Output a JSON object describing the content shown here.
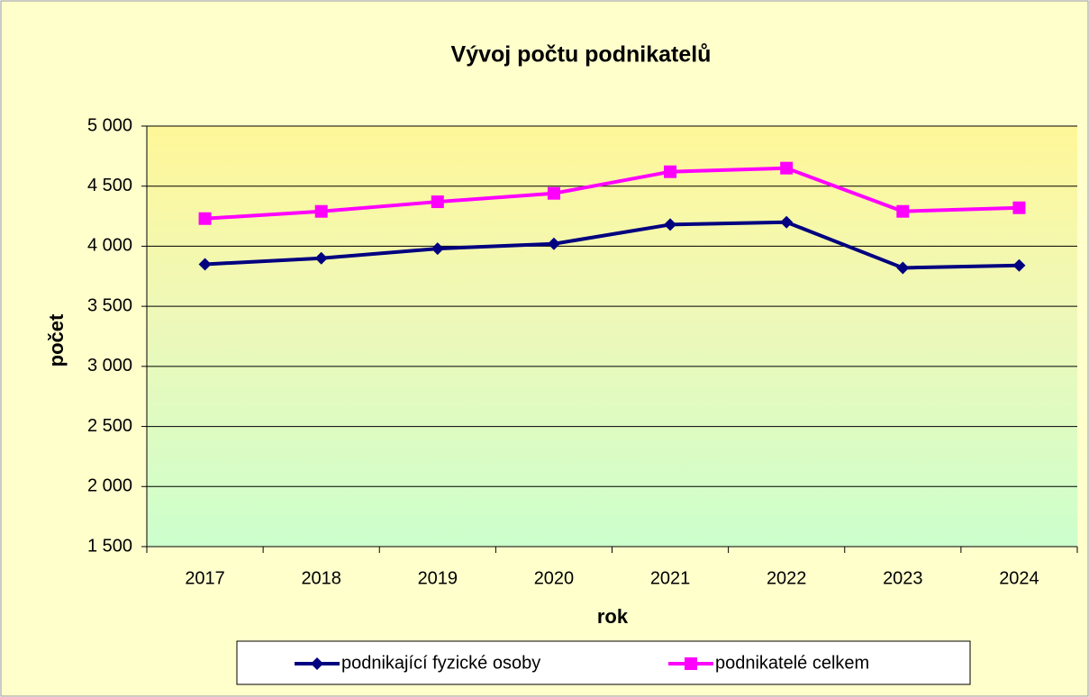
{
  "chart_data": {
    "type": "line",
    "title": "Vývoj počtu podnikatelů",
    "x_label": "rok",
    "y_label": "počet",
    "categories": [
      "2017",
      "2018",
      "2019",
      "2020",
      "2021",
      "2022",
      "2023",
      "2024"
    ],
    "series": [
      {
        "name": "podnikající fyzické osoby",
        "color": "#000080",
        "marker": "diamond",
        "values": [
          3850,
          3900,
          3980,
          4020,
          4180,
          4200,
          3820,
          3840
        ]
      },
      {
        "name": "podnikatelé celkem",
        "color": "#ff00ff",
        "marker": "square",
        "values": [
          4230,
          4290,
          4370,
          4440,
          4620,
          4650,
          4290,
          4320
        ]
      }
    ],
    "ylim": [
      1500,
      5000
    ],
    "yticks": [
      {
        "value": 1500,
        "label": "1 500"
      },
      {
        "value": 2000,
        "label": "2 000"
      },
      {
        "value": 2500,
        "label": "2 500"
      },
      {
        "value": 3000,
        "label": "3 000"
      },
      {
        "value": 3500,
        "label": "3 500"
      },
      {
        "value": 4000,
        "label": "4 000"
      },
      {
        "value": 4500,
        "label": "4 500"
      },
      {
        "value": 5000,
        "label": "5 000"
      }
    ],
    "grid": true,
    "legend": "bottom"
  }
}
